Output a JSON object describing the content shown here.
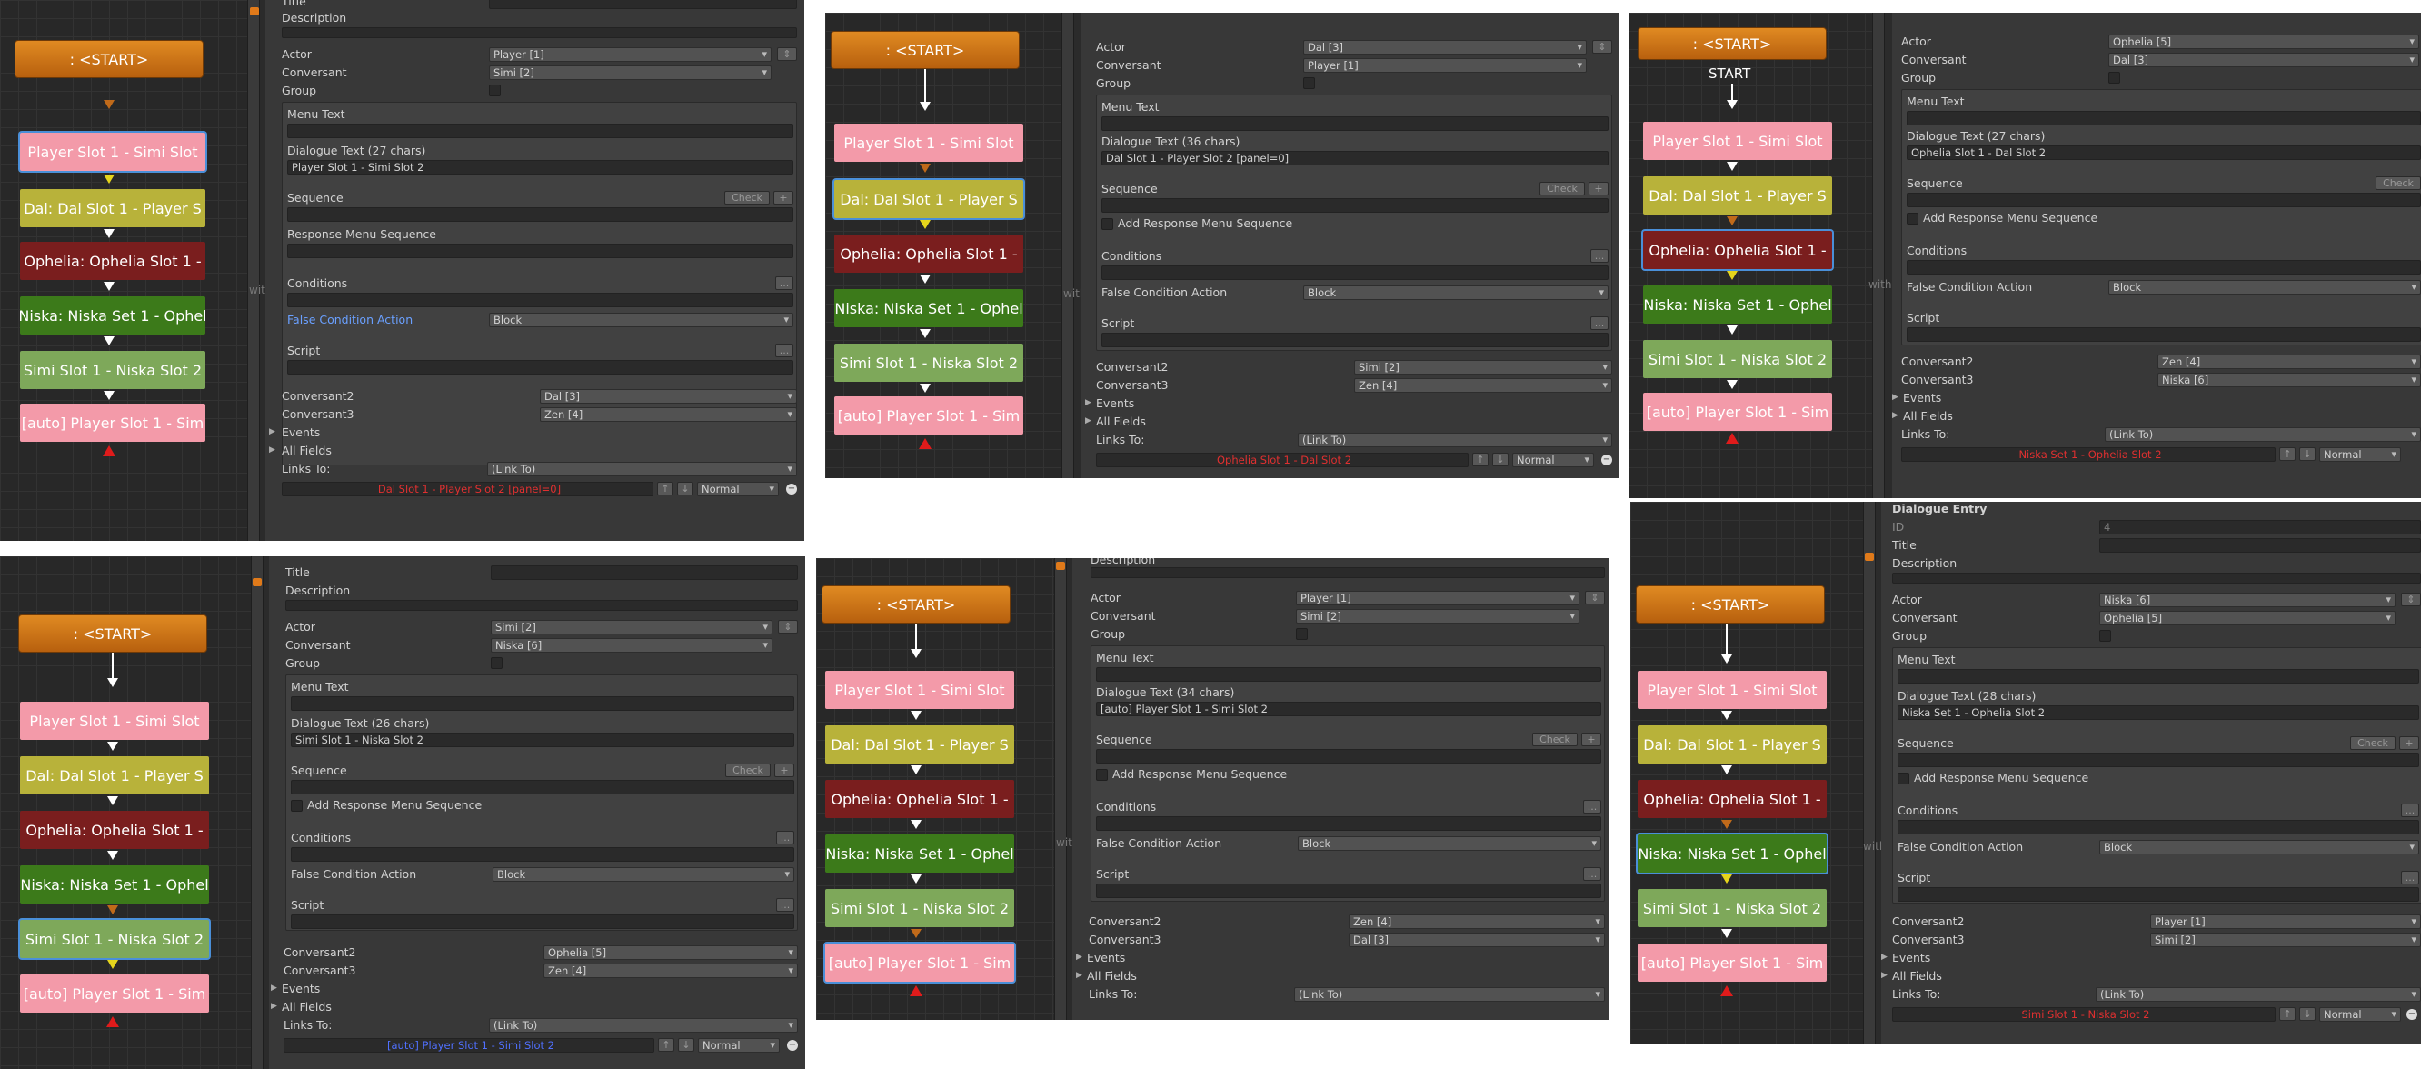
{
  "nodes": {
    "start": ": <START>",
    "start_plain": "START",
    "p1": "Player Slot 1 - Simi Slot",
    "dal": "Dal: Dal Slot 1 - Player S",
    "oph": "Ophelia: Ophelia Slot 1 -",
    "nis": "Niska: Niska Set 1 - Ophel",
    "simi": "Simi Slot 1 - Niska Slot 2",
    "auto": "[auto] Player Slot 1 - Sim"
  },
  "graph_fragment": "with",
  "labels": {
    "title": "Title",
    "description": "Description",
    "actor": "Actor",
    "conversant": "Conversant",
    "group": "Group",
    "menu_text": "Menu Text",
    "sequence": "Sequence",
    "check": "Check",
    "plus": "+",
    "response_menu_sequence": "Response Menu Sequence",
    "add_response_menu_sequence": "Add Response Menu Sequence",
    "conditions": "Conditions",
    "ellipsis": "...",
    "false_condition_action": "False Condition Action",
    "block": "Block",
    "script": "Script",
    "conversant2": "Conversant2",
    "conversant3": "Conversant3",
    "events": "Events",
    "all_fields": "All Fields",
    "links_to": "Links To:",
    "link_to": "(Link To)",
    "normal": "Normal",
    "dialogue_entry": "Dialogue Entry",
    "id": "ID",
    "id_value": "4",
    "up": "↑",
    "down": "↓",
    "minus": "−",
    "dropdown_mark": "⇕"
  },
  "panels": [
    {
      "actor": "Player [1]",
      "conversant": "Simi [2]",
      "dialogue_text_label": "Dialogue Text (27 chars)",
      "dialogue_text": "Player Slot 1 - Simi Slot 2",
      "conversant2": "Dal [3]",
      "conversant3": "Zen [4]",
      "link_label": "Dal Slot 1 - Player Slot 2 [panel=0]"
    },
    {
      "actor": "Dal [3]",
      "conversant": "Player [1]",
      "dialogue_text_label": "Dialogue Text (36 chars)",
      "dialogue_text": "Dal Slot 1 - Player Slot 2 [panel=0]",
      "conversant2": "Simi [2]",
      "conversant3": "Zen [4]",
      "link_label": "Ophelia Slot 1 - Dal Slot 2"
    },
    {
      "actor": "Ophelia [5]",
      "conversant": "Dal [3]",
      "dialogue_text_label": "Dialogue Text (27 chars)",
      "dialogue_text": "Ophelia Slot 1 - Dal Slot 2",
      "conversant2": "Zen [4]",
      "conversant3": "Niska [6]",
      "link_label": "Niska Set 1 - Ophelia Slot 2"
    },
    {
      "actor": "Simi [2]",
      "conversant": "Niska [6]",
      "dialogue_text_label": "Dialogue Text (26 chars)",
      "dialogue_text": "Simi Slot 1 - Niska Slot 2",
      "conversant2": "Ophelia [5]",
      "conversant3": "Zen [4]",
      "link_label": "[auto] Player Slot 1 - Simi Slot 2"
    },
    {
      "actor": "Player [1]",
      "conversant": "Simi [2]",
      "dialogue_text_label": "Dialogue Text (34 chars)",
      "dialogue_text": "[auto] Player Slot 1 - Simi Slot 2",
      "conversant2": "Zen [4]",
      "conversant3": "Dal [3]"
    },
    {
      "actor": "Niska [6]",
      "conversant": "Ophelia [5]",
      "dialogue_text_label": "Dialogue Text (28 chars)",
      "dialogue_text": "Niska Set 1 - Ophelia Slot 2",
      "conversant2": "Player [1]",
      "conversant3": "Simi [2]",
      "link_label": "Simi Slot 1 - Niska Slot 2"
    }
  ]
}
